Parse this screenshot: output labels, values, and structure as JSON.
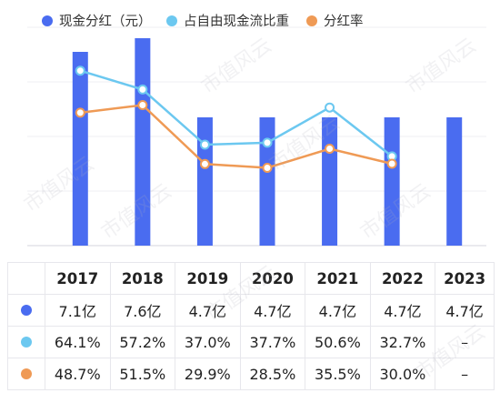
{
  "colors": {
    "dividend": "#4a6cf0",
    "fcf_ratio": "#6cc8f0",
    "payout": "#ef9a55"
  },
  "legend": [
    {
      "label": "现金分红（元）",
      "color": "#4a6cf0"
    },
    {
      "label": "占自由现金流比重",
      "color": "#6cc8f0"
    },
    {
      "label": "分红率",
      "color": "#ef9a55"
    }
  ],
  "watermark_text": "市值风云",
  "chart_data": {
    "type": "bar",
    "categories": [
      "2017",
      "2018",
      "2019",
      "2020",
      "2021",
      "2022",
      "2023"
    ],
    "series": [
      {
        "name": "现金分红（元）",
        "type": "bar",
        "unit": "亿",
        "values": [
          7.1,
          7.6,
          4.7,
          4.7,
          4.7,
          4.7,
          4.7
        ],
        "labels": [
          "7.1亿",
          "7.6亿",
          "4.7亿",
          "4.7亿",
          "4.7亿",
          "4.7亿",
          "4.7亿"
        ]
      },
      {
        "name": "占自由现金流比重",
        "type": "line",
        "unit": "%",
        "values": [
          64.1,
          57.2,
          37.0,
          37.7,
          50.6,
          32.7,
          null
        ],
        "labels": [
          "64.1%",
          "57.2%",
          "37.0%",
          "37.7%",
          "50.6%",
          "32.7%",
          "–"
        ]
      },
      {
        "name": "分红率",
        "type": "line",
        "unit": "%",
        "values": [
          48.7,
          51.5,
          29.9,
          28.5,
          35.5,
          30.0,
          null
        ],
        "labels": [
          "48.7%",
          "51.5%",
          "29.9%",
          "28.5%",
          "35.5%",
          "30.0%",
          "–"
        ]
      }
    ],
    "bar_ylim": [
      0,
      8
    ],
    "line_ylim": [
      0,
      80
    ],
    "grid": true,
    "legend_position": "top"
  }
}
